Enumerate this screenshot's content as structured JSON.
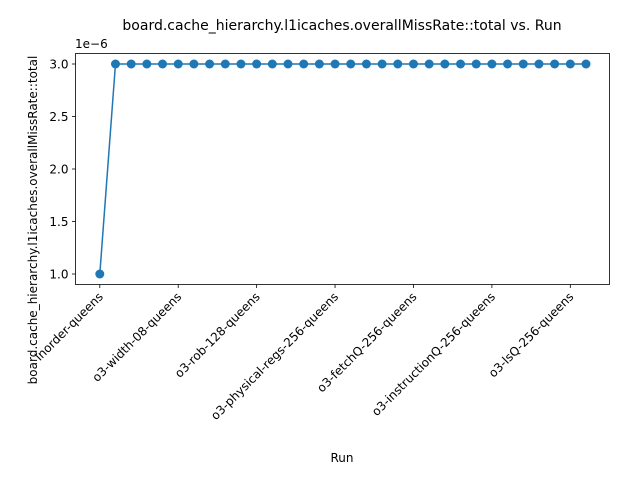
{
  "chart_data": {
    "type": "line",
    "title": "board.cache_hierarchy.l1icaches.overallMissRate::total vs. Run",
    "xlabel": "Run",
    "ylabel": "board.cache_hierarchy.l1icaches.overallMissRate::total",
    "y_offset_label": "1e−6",
    "x_tick_labels": [
      "inorder-queens",
      "o3-width-08-queens",
      "o3-rob-128-queens",
      "o3-physical-regs-256-queens",
      "o3-fetchQ-256-queens",
      "o3-instructionQ-256-queens",
      "o3-lsQ-256-queens"
    ],
    "x_tick_every": 5,
    "y_tick_labels": [
      "1.0",
      "1.5",
      "2.0",
      "2.5",
      "3.0"
    ],
    "y_ticks": [
      1.0,
      1.5,
      2.0,
      2.5,
      3.0
    ],
    "ylim": [
      0.9,
      3.1
    ],
    "grid": false,
    "series": [
      {
        "color": "#1f77b4",
        "marker": "circle",
        "values": [
          1,
          3,
          3,
          3,
          3,
          3,
          3,
          3,
          3,
          3,
          3,
          3,
          3,
          3,
          3,
          3,
          3,
          3,
          3,
          3,
          3,
          3,
          3,
          3,
          3,
          3,
          3,
          3,
          3,
          3,
          3,
          3
        ]
      }
    ]
  }
}
